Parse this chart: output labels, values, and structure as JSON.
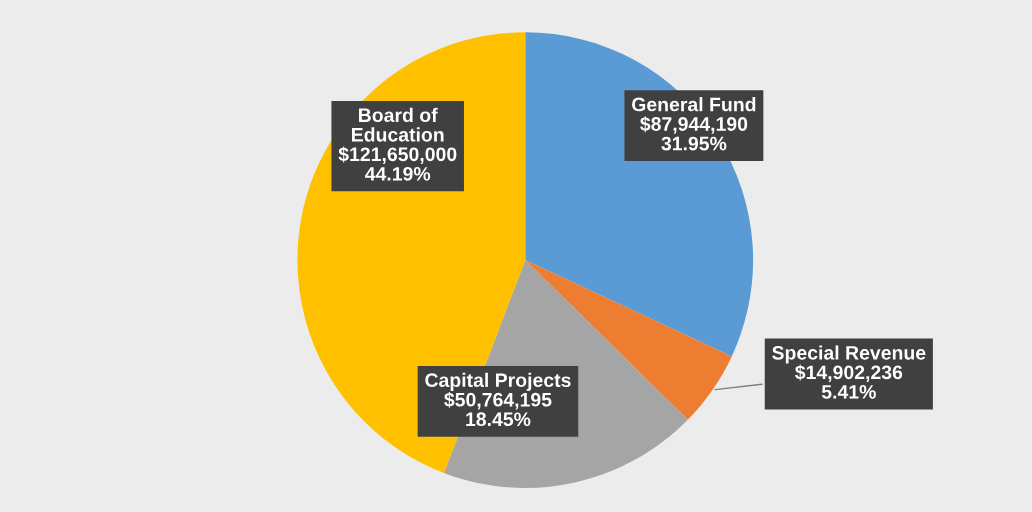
{
  "chart_data": {
    "type": "pie",
    "categories": [
      "General Fund",
      "Special Revenue",
      "Capital Projects",
      "Board of\nEducation"
    ],
    "values": [
      87944190,
      14902236,
      50764195,
      121650000
    ],
    "colors": [
      "#5b9bd5",
      "#ed7d31",
      "#a5a5a5",
      "#ffc000"
    ],
    "value_labels": [
      "$87,944,190\n31.95%",
      "$14,902,236\n5.41%",
      "$50,764,195\n18.45%",
      "$121,650,000\n44.19%"
    ],
    "legend": false
  }
}
